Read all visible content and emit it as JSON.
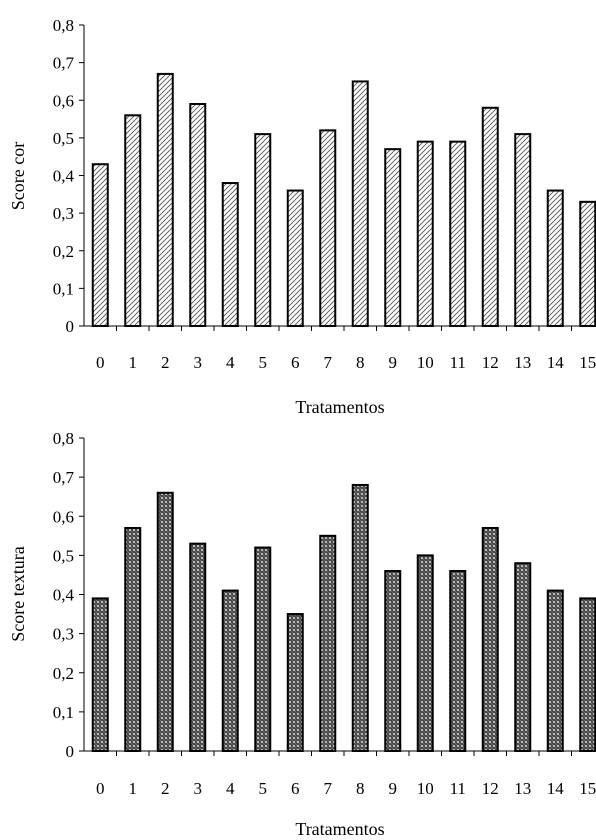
{
  "chart_data": [
    {
      "type": "bar",
      "categories": [
        "0",
        "1",
        "2",
        "3",
        "4",
        "5",
        "6",
        "7",
        "8",
        "9",
        "10",
        "11",
        "12",
        "13",
        "14",
        "15"
      ],
      "values": [
        0.43,
        0.56,
        0.67,
        0.59,
        0.38,
        0.51,
        0.36,
        0.52,
        0.65,
        0.47,
        0.49,
        0.49,
        0.58,
        0.51,
        0.36,
        0.33
      ],
      "xlabel": "Tratamentos",
      "ylabel": "Score cor",
      "ylim": [
        0,
        0.8
      ],
      "yticks": [
        "0",
        "0,1",
        "0,2",
        "0,3",
        "0,4",
        "0,5",
        "0,6",
        "0,7",
        "0,8"
      ],
      "grid": false,
      "pattern": "diagonal-hatch"
    },
    {
      "type": "bar",
      "categories": [
        "0",
        "1",
        "2",
        "3",
        "4",
        "5",
        "6",
        "7",
        "8",
        "9",
        "10",
        "11",
        "12",
        "13",
        "14",
        "15"
      ],
      "values": [
        0.39,
        0.57,
        0.66,
        0.53,
        0.41,
        0.52,
        0.35,
        0.55,
        0.68,
        0.46,
        0.5,
        0.46,
        0.57,
        0.48,
        0.41,
        0.39
      ],
      "xlabel": "Tratamentos",
      "ylabel": "Score textura",
      "ylim": [
        0,
        0.8
      ],
      "yticks": [
        "0",
        "0,1",
        "0,2",
        "0,3",
        "0,4",
        "0,5",
        "0,6",
        "0,7",
        "0,8"
      ],
      "grid": false,
      "pattern": "dots"
    }
  ]
}
